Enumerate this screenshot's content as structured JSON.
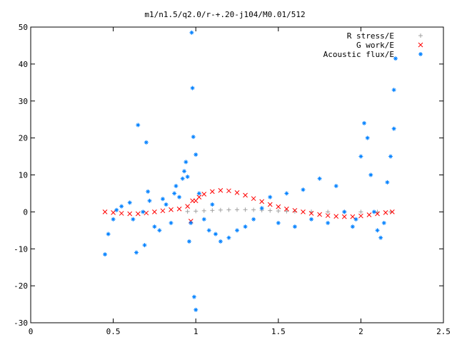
{
  "chart_data": {
    "type": "scatter",
    "title": "m1/n1.5/q2.0/r-+.20-j104/M0.01/512",
    "xlabel": "",
    "ylabel": "",
    "xlim": [
      0,
      2.5
    ],
    "ylim": [
      -30,
      50
    ],
    "xticks": [
      0,
      0.5,
      1,
      1.5,
      2,
      2.5
    ],
    "xtick_labels": [
      "0",
      "0.5",
      "1",
      "1.5",
      "2",
      "2.5"
    ],
    "yticks": [
      -30,
      -20,
      -10,
      0,
      10,
      20,
      30,
      40,
      50
    ],
    "ytick_labels": [
      "-30",
      "-20",
      "-10",
      "0",
      "10",
      "20",
      "30",
      "40",
      "50"
    ],
    "grid": false,
    "legend_position": "top-right",
    "series": [
      {
        "name": "R stress/E",
        "marker": "+",
        "color": "#a0a0a0",
        "points": [
          [
            0.95,
            0.1
          ],
          [
            1.0,
            0.2
          ],
          [
            1.05,
            0.3
          ],
          [
            1.1,
            0.4
          ],
          [
            1.15,
            0.5
          ],
          [
            1.2,
            0.55
          ],
          [
            1.25,
            0.6
          ],
          [
            1.3,
            0.6
          ],
          [
            1.35,
            0.55
          ],
          [
            1.4,
            0.45
          ],
          [
            1.45,
            0.35
          ],
          [
            1.5,
            0.25
          ],
          [
            1.55,
            0.15
          ],
          [
            1.6,
            0.1
          ],
          [
            1.7,
            0.05
          ],
          [
            1.8,
            0.0
          ],
          [
            1.9,
            0.0
          ],
          [
            2.0,
            0.0
          ],
          [
            2.1,
            0.0
          ],
          [
            2.18,
            0.0
          ]
        ]
      },
      {
        "name": "G work/E",
        "marker": "x",
        "color": "#ff0000",
        "points": [
          [
            0.45,
            0.0
          ],
          [
            0.5,
            -0.2
          ],
          [
            0.55,
            -0.4
          ],
          [
            0.6,
            -0.5
          ],
          [
            0.65,
            -0.5
          ],
          [
            0.7,
            -0.3
          ],
          [
            0.75,
            0.0
          ],
          [
            0.8,
            0.3
          ],
          [
            0.85,
            0.6
          ],
          [
            0.9,
            0.8
          ],
          [
            0.95,
            1.5
          ],
          [
            0.97,
            -2.5
          ],
          [
            0.98,
            3.0
          ],
          [
            1.0,
            3.0
          ],
          [
            1.02,
            4.0
          ],
          [
            1.05,
            4.8
          ],
          [
            1.1,
            5.5
          ],
          [
            1.15,
            5.8
          ],
          [
            1.2,
            5.7
          ],
          [
            1.25,
            5.2
          ],
          [
            1.3,
            4.5
          ],
          [
            1.35,
            3.6
          ],
          [
            1.4,
            2.8
          ],
          [
            1.45,
            2.0
          ],
          [
            1.5,
            1.4
          ],
          [
            1.55,
            0.8
          ],
          [
            1.6,
            0.4
          ],
          [
            1.65,
            0.0
          ],
          [
            1.7,
            -0.4
          ],
          [
            1.75,
            -0.7
          ],
          [
            1.8,
            -1.0
          ],
          [
            1.85,
            -1.2
          ],
          [
            1.9,
            -1.3
          ],
          [
            1.95,
            -1.3
          ],
          [
            2.0,
            -1.1
          ],
          [
            2.05,
            -0.8
          ],
          [
            2.1,
            -0.5
          ],
          [
            2.15,
            -0.2
          ],
          [
            2.19,
            0.0
          ]
        ]
      },
      {
        "name": "Acoustic flux/E",
        "marker": "*",
        "color": "#0080ff",
        "points": [
          [
            0.45,
            -11.5
          ],
          [
            0.47,
            -6
          ],
          [
            0.5,
            -2
          ],
          [
            0.52,
            0.5
          ],
          [
            0.55,
            1.5
          ],
          [
            0.6,
            2.5
          ],
          [
            0.62,
            -2
          ],
          [
            0.64,
            -11
          ],
          [
            0.65,
            23.5
          ],
          [
            0.68,
            0
          ],
          [
            0.69,
            -9
          ],
          [
            0.7,
            18.8
          ],
          [
            0.71,
            5.5
          ],
          [
            0.72,
            3
          ],
          [
            0.75,
            -4
          ],
          [
            0.78,
            -5
          ],
          [
            0.8,
            3.5
          ],
          [
            0.82,
            2
          ],
          [
            0.85,
            -3
          ],
          [
            0.87,
            5
          ],
          [
            0.88,
            7
          ],
          [
            0.9,
            4
          ],
          [
            0.92,
            9
          ],
          [
            0.93,
            11
          ],
          [
            0.94,
            13.5
          ],
          [
            0.95,
            9.5
          ],
          [
            0.96,
            -8
          ],
          [
            0.97,
            -3
          ],
          [
            0.975,
            48.5
          ],
          [
            0.98,
            33.5
          ],
          [
            0.985,
            20.3
          ],
          [
            0.99,
            -23
          ],
          [
            1.0,
            -26.5
          ],
          [
            1.0,
            15.5
          ],
          [
            1.02,
            5
          ],
          [
            1.05,
            -2
          ],
          [
            1.08,
            -5
          ],
          [
            1.1,
            2
          ],
          [
            1.12,
            -6
          ],
          [
            1.15,
            -8
          ],
          [
            1.2,
            -7
          ],
          [
            1.25,
            -5
          ],
          [
            1.3,
            -4
          ],
          [
            1.35,
            -2
          ],
          [
            1.4,
            1
          ],
          [
            1.45,
            4
          ],
          [
            1.5,
            -3
          ],
          [
            1.55,
            5
          ],
          [
            1.6,
            -4
          ],
          [
            1.65,
            6
          ],
          [
            1.7,
            -2
          ],
          [
            1.75,
            9
          ],
          [
            1.8,
            -3
          ],
          [
            1.85,
            7
          ],
          [
            1.9,
            0
          ],
          [
            1.95,
            -4
          ],
          [
            1.97,
            -2
          ],
          [
            2.0,
            15
          ],
          [
            2.02,
            24
          ],
          [
            2.04,
            20
          ],
          [
            2.06,
            10
          ],
          [
            2.08,
            0
          ],
          [
            2.1,
            -5
          ],
          [
            2.12,
            -7
          ],
          [
            2.14,
            -3
          ],
          [
            2.16,
            8
          ],
          [
            2.18,
            15
          ],
          [
            2.2,
            22.5
          ],
          [
            2.2,
            33
          ],
          [
            2.21,
            41.5
          ]
        ]
      }
    ]
  }
}
